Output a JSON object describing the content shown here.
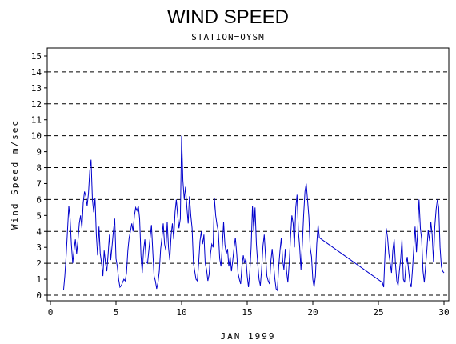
{
  "chart_data": {
    "type": "line",
    "title": "WIND SPEED",
    "subtitle": "STATION=OYSM",
    "xlabel": "JAN 1999",
    "ylabel": "Wind Speed m/sec",
    "xlim": [
      0,
      30
    ],
    "ylim": [
      0,
      15.5
    ],
    "x_ticks": [
      0,
      5,
      10,
      15,
      20,
      25,
      30
    ],
    "y_ticks": [
      0,
      1,
      2,
      3,
      4,
      5,
      6,
      7,
      8,
      9,
      10,
      11,
      12,
      13,
      14,
      15
    ],
    "reference_lines": [
      2,
      4,
      6,
      8,
      10,
      12,
      14
    ],
    "grid": "dashed horizontal reference lines at even values",
    "legend": "none",
    "colors": {
      "series": "#0000cc",
      "frame": "#000000"
    },
    "series": [
      {
        "x": [
          1.0,
          1.1,
          1.2,
          1.3,
          1.4,
          1.5,
          1.6,
          1.7,
          1.8,
          1.9,
          2.0,
          2.1,
          2.2,
          2.3,
          2.4,
          2.5,
          2.6,
          2.7,
          2.8,
          2.9,
          3.0,
          3.1,
          3.2,
          3.3,
          3.4,
          3.5,
          3.6,
          3.7,
          3.8,
          3.9,
          4.0,
          4.1,
          4.2,
          4.3,
          4.4,
          4.5,
          4.6,
          4.7,
          4.8,
          4.9,
          5.0,
          5.1,
          5.2,
          5.3,
          5.4,
          5.5,
          5.6,
          5.7,
          5.8,
          5.9,
          6.0,
          6.1,
          6.2,
          6.3,
          6.4,
          6.5,
          6.6,
          6.7,
          6.8,
          6.9,
          7.0,
          7.1,
          7.2,
          7.3,
          7.4,
          7.5,
          7.6,
          7.7,
          7.8,
          7.9,
          8.0,
          8.1,
          8.2,
          8.3,
          8.4,
          8.5,
          8.6,
          8.7,
          8.8,
          8.9,
          9.0,
          9.1,
          9.2,
          9.3,
          9.4,
          9.5,
          9.6,
          9.7,
          9.8,
          9.9,
          10.0,
          10.1,
          10.2,
          10.3,
          10.4,
          10.5,
          10.6,
          10.7,
          10.8,
          10.9,
          11.0,
          11.1,
          11.2,
          11.3,
          11.4,
          11.5,
          11.6,
          11.7,
          11.8,
          11.9,
          12.0,
          12.1,
          12.2,
          12.3,
          12.4,
          12.5,
          12.6,
          12.7,
          12.8,
          12.9,
          13.0,
          13.1,
          13.2,
          13.3,
          13.4,
          13.5,
          13.6,
          13.7,
          13.8,
          13.9,
          14.0,
          14.1,
          14.2,
          14.3,
          14.4,
          14.5,
          14.6,
          14.7,
          14.8,
          14.9,
          15.0,
          15.1,
          15.2,
          15.3,
          15.4,
          15.5,
          15.6,
          15.7,
          15.8,
          15.9,
          16.0,
          16.1,
          16.2,
          16.3,
          16.4,
          16.5,
          16.6,
          16.7,
          16.8,
          16.9,
          17.0,
          17.1,
          17.2,
          17.3,
          17.4,
          17.5,
          17.6,
          17.7,
          17.8,
          17.9,
          18.0,
          18.1,
          18.2,
          18.3,
          18.4,
          18.5,
          18.6,
          18.7,
          18.8,
          18.9,
          19.0,
          19.1,
          19.2,
          19.3,
          19.4,
          19.5,
          19.6,
          19.7,
          19.8,
          19.9,
          20.0,
          20.1,
          20.2,
          20.3,
          20.4,
          20.5,
          25.3,
          25.4,
          25.5,
          25.6,
          25.7,
          25.8,
          25.9,
          26.0,
          26.1,
          26.2,
          26.3,
          26.4,
          26.5,
          26.6,
          26.7,
          26.8,
          26.9,
          27.0,
          27.1,
          27.2,
          27.3,
          27.4,
          27.5,
          27.6,
          27.7,
          27.8,
          27.9,
          28.0,
          28.1,
          28.2,
          28.3,
          28.4,
          28.5,
          28.6,
          28.7,
          28.8,
          28.9,
          29.0,
          29.1,
          29.2,
          29.3,
          29.4,
          29.5,
          29.6,
          29.7,
          29.8,
          29.9,
          30.0
        ],
        "y": [
          0.3,
          1.2,
          2.5,
          4.0,
          5.6,
          4.8,
          3.2,
          2.0,
          2.8,
          3.5,
          2.6,
          3.4,
          4.5,
          5.0,
          4.2,
          5.8,
          6.5,
          6.2,
          5.6,
          6.4,
          7.8,
          8.5,
          6.0,
          5.2,
          6.1,
          3.8,
          2.5,
          4.3,
          2.6,
          2.0,
          1.2,
          2.8,
          2.0,
          1.5,
          2.6,
          3.8,
          2.2,
          3.1,
          4.0,
          4.8,
          2.3,
          1.8,
          1.0,
          0.5,
          0.6,
          0.8,
          1.0,
          0.9,
          1.4,
          2.8,
          3.6,
          4.0,
          4.5,
          4.0,
          5.0,
          5.5,
          5.3,
          5.6,
          4.8,
          2.5,
          1.4,
          2.8,
          3.5,
          2.1,
          2.0,
          2.8,
          3.6,
          4.4,
          2.8,
          1.2,
          0.9,
          0.4,
          0.8,
          1.5,
          2.9,
          3.6,
          4.5,
          3.2,
          2.8,
          4.6,
          3.0,
          2.2,
          3.8,
          4.5,
          3.5,
          5.2,
          6.0,
          5.0,
          4.2,
          4.8,
          10.0,
          7.2,
          6.0,
          6.8,
          5.5,
          4.5,
          6.2,
          5.0,
          4.2,
          2.0,
          1.5,
          1.0,
          0.9,
          2.0,
          3.4,
          4.0,
          3.2,
          3.8,
          2.0,
          1.6,
          0.9,
          1.3,
          2.6,
          3.2,
          3.0,
          6.1,
          5.0,
          4.4,
          4.0,
          2.3,
          1.8,
          3.0,
          4.6,
          3.2,
          2.6,
          2.9,
          1.8,
          2.4,
          1.5,
          2.2,
          3.0,
          3.6,
          2.6,
          1.4,
          1.0,
          0.7,
          1.8,
          2.5,
          2.0,
          2.3,
          1.2,
          0.5,
          1.5,
          3.0,
          5.6,
          4.0,
          5.5,
          3.2,
          2.0,
          1.0,
          0.6,
          1.6,
          3.1,
          3.8,
          2.4,
          1.2,
          0.9,
          0.7,
          2.1,
          2.9,
          2.0,
          1.1,
          0.4,
          0.3,
          1.8,
          2.8,
          3.6,
          2.2,
          1.6,
          2.9,
          1.5,
          0.8,
          2.0,
          3.6,
          5.0,
          4.5,
          3.0,
          5.5,
          6.3,
          4.0,
          3.0,
          1.6,
          3.2,
          5.0,
          6.5,
          7.0,
          6.0,
          4.9,
          3.0,
          2.4,
          1.0,
          0.5,
          1.2,
          3.2,
          4.4,
          3.6,
          0.8,
          0.5,
          2.5,
          4.2,
          3.6,
          2.6,
          2.0,
          1.4,
          2.8,
          3.5,
          2.0,
          0.9,
          0.6,
          1.5,
          2.3,
          3.5,
          1.0,
          0.8,
          1.9,
          2.4,
          1.6,
          0.8,
          0.5,
          1.6,
          3.0,
          4.3,
          2.7,
          4.1,
          6.0,
          4.2,
          3.5,
          1.5,
          0.8,
          1.8,
          2.9,
          4.1,
          3.4,
          4.6,
          3.8,
          2.1,
          4.3,
          5.4,
          6.0,
          5.5,
          3.0,
          1.8,
          1.5,
          1.4
        ]
      }
    ]
  }
}
